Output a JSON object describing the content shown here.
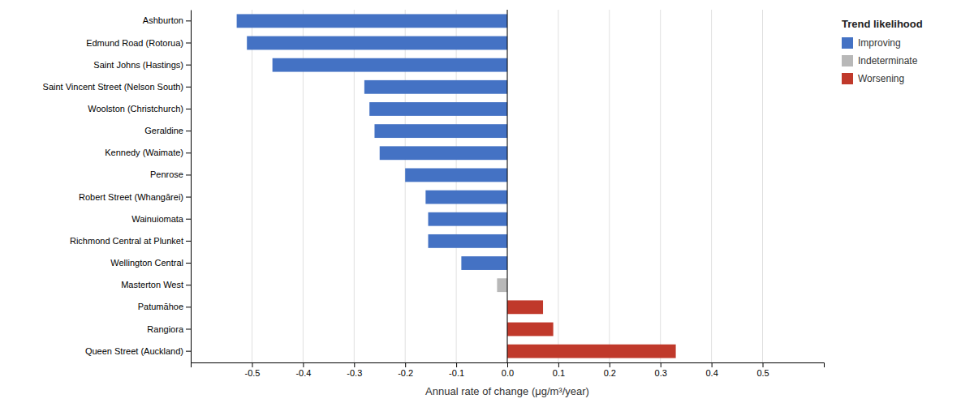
{
  "chart_data": {
    "type": "bar",
    "orientation": "horizontal",
    "xlabel": "Annual rate of change (μg/m³/year)",
    "categories": [
      "Ashburton",
      "Edmund Road (Rotorua)",
      "Saint Johns (Hastings)",
      "Saint Vincent Street (Nelson South)",
      "Woolston (Christchurch)",
      "Geraldine",
      "Kennedy (Waimate)",
      "Penrose",
      "Robert Street (Whangārei)",
      "Wainuiomata",
      "Richmond Central at Plunket",
      "Wellington Central",
      "Masterton West",
      "Patumāhoe",
      "Rangiora",
      "Queen Street (Auckland)"
    ],
    "series": [
      {
        "name": "Improving",
        "color": "#4472c4",
        "values": [
          -0.53,
          -0.51,
          -0.46,
          -0.28,
          -0.27,
          -0.26,
          -0.25,
          -0.2,
          -0.16,
          -0.155,
          -0.155,
          -0.09,
          null,
          null,
          null,
          null
        ]
      },
      {
        "name": "Indeterminate",
        "color": "#b8b8b8",
        "values": [
          null,
          null,
          null,
          null,
          null,
          null,
          null,
          null,
          null,
          null,
          null,
          null,
          -0.02,
          null,
          null,
          null
        ]
      },
      {
        "name": "Worsening",
        "color": "#c0392b",
        "values": [
          null,
          null,
          null,
          null,
          null,
          null,
          null,
          null,
          null,
          null,
          null,
          null,
          null,
          0.07,
          0.09,
          0.33
        ]
      }
    ],
    "legend_title": "Trend likelihood",
    "legend": "upper right",
    "xlim": [
      -0.62,
      0.62
    ],
    "xticks": [
      -0.5,
      -0.4,
      -0.3,
      -0.2,
      -0.1,
      {
        "value": 0.0,
        "label": "0.0"
      },
      0.1,
      0.2,
      0.3,
      0.4,
      0.5
    ],
    "grid": true
  }
}
